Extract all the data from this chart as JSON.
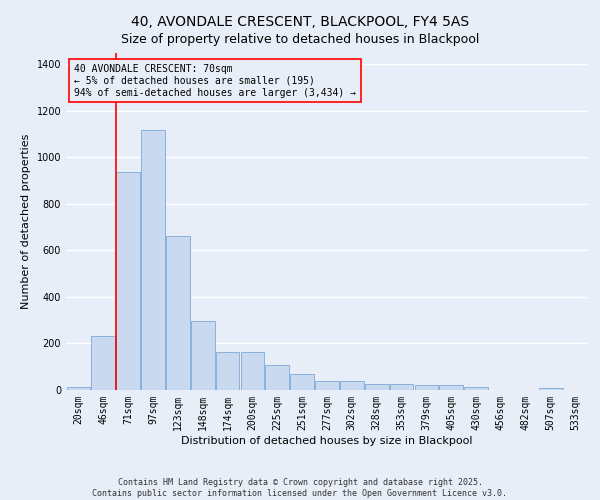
{
  "title": "40, AVONDALE CRESCENT, BLACKPOOL, FY4 5AS",
  "subtitle": "Size of property relative to detached houses in Blackpool",
  "xlabel": "Distribution of detached houses by size in Blackpool",
  "ylabel": "Number of detached properties",
  "bar_color": "#c9d9f0",
  "bar_edge_color": "#7ca9d8",
  "background_color": "#e8eef8",
  "grid_color": "#ffffff",
  "categories": [
    "20sqm",
    "46sqm",
    "71sqm",
    "97sqm",
    "123sqm",
    "148sqm",
    "174sqm",
    "200sqm",
    "225sqm",
    "251sqm",
    "277sqm",
    "302sqm",
    "328sqm",
    "353sqm",
    "379sqm",
    "405sqm",
    "430sqm",
    "456sqm",
    "482sqm",
    "507sqm",
    "533sqm"
  ],
  "values": [
    15,
    230,
    935,
    1115,
    660,
    298,
    162,
    162,
    108,
    70,
    40,
    40,
    25,
    25,
    20,
    22,
    13,
    0,
    0,
    9,
    0
  ],
  "ylim": [
    0,
    1450
  ],
  "yticks": [
    0,
    200,
    400,
    600,
    800,
    1000,
    1200,
    1400
  ],
  "annotation_title": "40 AVONDALE CRESCENT: 70sqm",
  "annotation_line1": "← 5% of detached houses are smaller (195)",
  "annotation_line2": "94% of semi-detached houses are larger (3,434) →",
  "vline_x": 1.5,
  "footnote1": "Contains HM Land Registry data © Crown copyright and database right 2025.",
  "footnote2": "Contains public sector information licensed under the Open Government Licence v3.0.",
  "title_fontsize": 10,
  "label_fontsize": 8,
  "tick_fontsize": 7,
  "annotation_fontsize": 7,
  "footnote_fontsize": 6
}
